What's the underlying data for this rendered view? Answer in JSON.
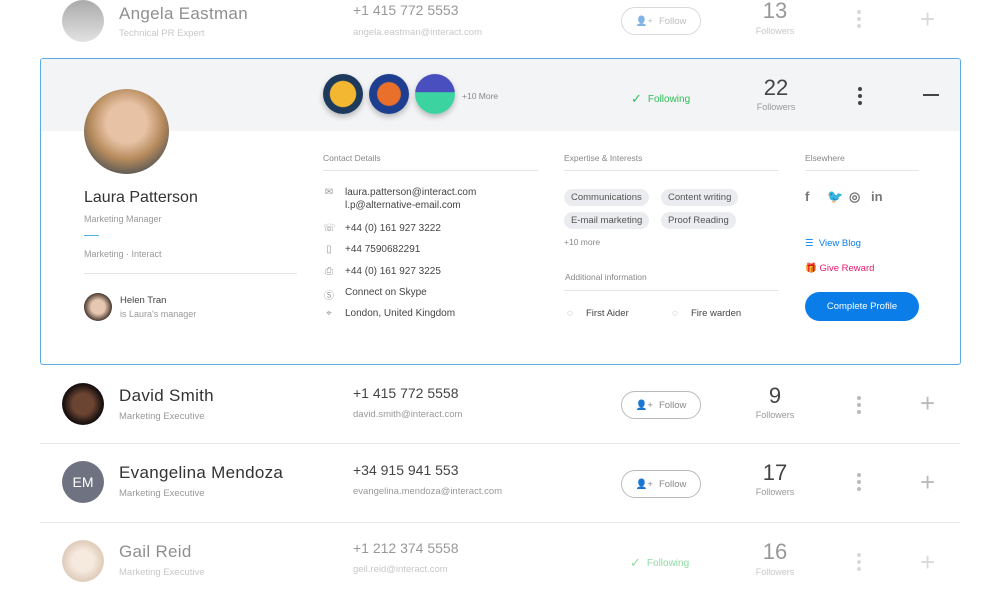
{
  "contacts": [
    {
      "name": "Angela Eastman",
      "role": "Technical PR Expert",
      "phone": "+1 415 772 5553",
      "email": "angela.eastman@interact.com",
      "follow_label": "Follow",
      "followers": "13",
      "followers_label": "Followers"
    },
    {
      "name": "David Smith",
      "role": "Marketing Executive",
      "phone": "+1 415 772 5558",
      "email": "david.smith@interact.com",
      "follow_label": "Follow",
      "followers": "9",
      "followers_label": "Followers"
    },
    {
      "name": "Evangelina Mendoza",
      "initials": "EM",
      "role": "Marketing Executive",
      "phone": "+34 915 941 553",
      "email": "evangelina.mendoza@interact.com",
      "follow_label": "Follow",
      "followers": "17",
      "followers_label": "Followers"
    },
    {
      "name": "Gail Reid",
      "role": "Marketing Executive",
      "phone": "+1 212 374 5558",
      "email": "geil.reid@interact.com",
      "following_label": "Following",
      "followers": "16",
      "followers_label": "Followers"
    }
  ],
  "expanded": {
    "name": "Laura Patterson",
    "role": "Marketing Manager",
    "department": "Marketing",
    "company": "Interact",
    "separator": "·",
    "badges_more": "+10 More",
    "following_label": "Following",
    "followers": "22",
    "followers_label": "Followers",
    "manager_name": "Helen Tran",
    "manager_caption": "is Laura's manager",
    "contact_title": "Contact Details",
    "email": "laura.patterson@interact.com",
    "alt_email": "l.p@alternative-email.com",
    "phone": "+44 (0) 161 927 3222",
    "mobile": "+44 7590682291",
    "fax": "+44 (0) 161 927 3225",
    "skype": "Connect on Skype",
    "location": "London, United Kingdom",
    "expertise_title": "Expertise & Interests",
    "tags": [
      "Communications",
      "Content writing",
      "E-mail marketing",
      "Proof Reading"
    ],
    "tags_more": "+10 more",
    "additional_title": "Additional information",
    "additional": [
      "First Aider",
      "Fire warden"
    ],
    "elsewhere_title": "Elsewhere",
    "view_blog": "View Blog",
    "give_reward": "Give Reward",
    "complete_profile": "Complete Profile"
  },
  "colors": {
    "accent": "#0a7de8",
    "following": "#2ebd55",
    "reward": "#e8196b",
    "border": "#5aaae8"
  }
}
